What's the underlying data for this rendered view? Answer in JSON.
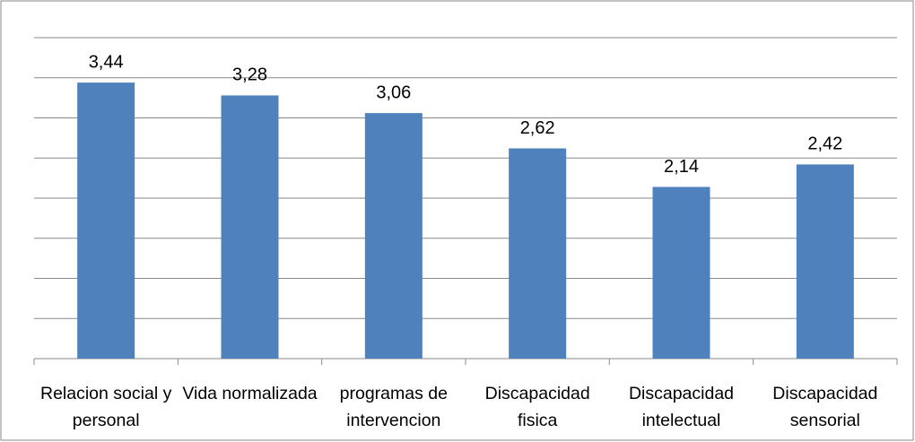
{
  "chart_data": {
    "type": "bar",
    "categories": [
      "Relacion social y personal",
      "Vida normalizada",
      "programas de intervencion",
      "Discapacidad fisica",
      "Discapacidad intelectual",
      "Discapacidad sensorial"
    ],
    "values": [
      3.44,
      3.28,
      3.06,
      2.62,
      2.14,
      2.42
    ],
    "value_labels": [
      "3,44",
      "3,28",
      "3,06",
      "2,62",
      "2,14",
      "2,42"
    ],
    "color": "#4f81bd",
    "ylim": [
      0,
      4
    ],
    "yticks": [
      0,
      0.5,
      1,
      1.5,
      2,
      2.5,
      3,
      3.5,
      4
    ],
    "grid": true
  }
}
